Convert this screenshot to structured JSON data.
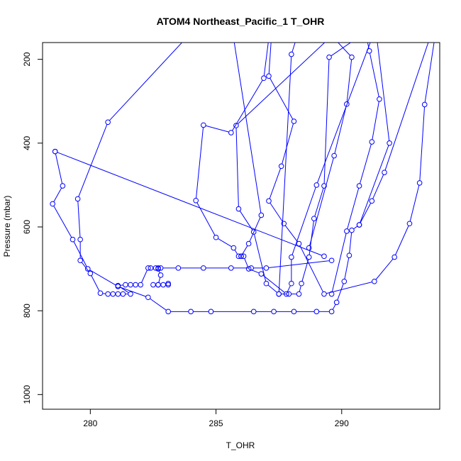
{
  "chart_data": {
    "type": "line",
    "title": "ATOM4 Northeast_Pacific_1 T_OHR",
    "xlabel": "T_OHR",
    "ylabel": "Pressure (mbar)",
    "xlim": [
      278.1,
      293.9
    ],
    "ylim": [
      1035,
      160
    ],
    "y_reversed": true,
    "xticks": [
      280,
      285,
      290
    ],
    "yticks": [
      200,
      400,
      600,
      800,
      1000
    ],
    "grid": false,
    "color": "#0000ff",
    "series": [
      {
        "points": [
          [
            283.8,
            150
          ],
          [
            280.7,
            350
          ],
          [
            279.5,
            533
          ],
          [
            279.6,
            630
          ],
          [
            279.6,
            680
          ],
          [
            280.0,
            711
          ],
          [
            280.4,
            758
          ],
          [
            280.7,
            760
          ],
          [
            280.9,
            760
          ],
          [
            281.1,
            760
          ],
          [
            281.3,
            760
          ],
          [
            281.6,
            760
          ],
          [
            281.1,
            740
          ],
          [
            281.4,
            738
          ],
          [
            281.6,
            738
          ],
          [
            281.8,
            738
          ],
          [
            282.0,
            738
          ],
          [
            282.3,
            698
          ],
          [
            282.4,
            698
          ],
          [
            282.6,
            698
          ],
          [
            282.7,
            698
          ],
          [
            282.8,
            698
          ],
          [
            283.5,
            698
          ],
          [
            284.5,
            698
          ],
          [
            285.6,
            698
          ],
          [
            286.4,
            698
          ],
          [
            287.0,
            698
          ],
          [
            289.6,
            680
          ]
        ]
      },
      {
        "points": [
          [
            278.6,
            420
          ],
          [
            278.9,
            502
          ],
          [
            278.5,
            545
          ],
          [
            279.3,
            630
          ],
          [
            279.9,
            700
          ],
          [
            281.1,
            742
          ],
          [
            282.3,
            768
          ],
          [
            283.1,
            802
          ],
          [
            284.0,
            802
          ],
          [
            284.8,
            802
          ],
          [
            286.5,
            802
          ],
          [
            287.3,
            802
          ],
          [
            288.1,
            802
          ],
          [
            289.0,
            802
          ],
          [
            289.6,
            802
          ],
          [
            289.8,
            780
          ],
          [
            290.1,
            730
          ],
          [
            290.3,
            668
          ],
          [
            290.4,
            608
          ],
          [
            290.7,
            595
          ],
          [
            291.2,
            538
          ],
          [
            291.7,
            470
          ],
          [
            293.5,
            150
          ]
        ]
      },
      {
        "points": [
          [
            278.6,
            420
          ],
          [
            289.3,
            670
          ]
        ]
      },
      {
        "points": [
          [
            290.6,
            150
          ],
          [
            289.5,
            195
          ],
          [
            289.3,
            502
          ],
          [
            288.9,
            580
          ],
          [
            288.7,
            672
          ],
          [
            288.4,
            735
          ],
          [
            288.3,
            760
          ],
          [
            287.9,
            760
          ],
          [
            287.5,
            760
          ],
          [
            287.0,
            735
          ],
          [
            286.5,
            612
          ],
          [
            285.9,
            557
          ],
          [
            285.8,
            358
          ],
          [
            289.5,
            150
          ]
        ]
      },
      {
        "points": [
          [
            287.1,
            150
          ],
          [
            286.9,
            245
          ],
          [
            285.6,
            375
          ],
          [
            284.5,
            357
          ],
          [
            284.2,
            537
          ],
          [
            285.0,
            625
          ],
          [
            285.7,
            650
          ],
          [
            285.9,
            670
          ],
          [
            286.0,
            670
          ],
          [
            286.1,
            670
          ],
          [
            286.3,
            700
          ],
          [
            286.8,
            712
          ],
          [
            287.8,
            760
          ],
          [
            288.0,
            735
          ],
          [
            288.0,
            672
          ],
          [
            289.0,
            500
          ],
          [
            291.2,
            150
          ]
        ]
      },
      {
        "points": [
          [
            287.2,
            150
          ],
          [
            287.1,
            240
          ],
          [
            288.1,
            348
          ],
          [
            287.6,
            455
          ],
          [
            287.1,
            538
          ],
          [
            287.7,
            592
          ],
          [
            288.3,
            640
          ],
          [
            289.3,
            760
          ],
          [
            291.3,
            730
          ],
          [
            292.1,
            672
          ],
          [
            292.7,
            592
          ],
          [
            293.1,
            495
          ],
          [
            293.3,
            308
          ],
          [
            293.7,
            150
          ]
        ]
      },
      {
        "points": [
          [
            289.7,
            150
          ],
          [
            290.4,
            195
          ],
          [
            290.2,
            307
          ],
          [
            289.7,
            430
          ],
          [
            288.7,
            650
          ]
        ]
      },
      {
        "points": [
          [
            291.0,
            150
          ],
          [
            291.1,
            180
          ],
          [
            291.5,
            295
          ],
          [
            291.2,
            397
          ],
          [
            290.7,
            502
          ],
          [
            290.2,
            610
          ],
          [
            289.6,
            760
          ]
        ]
      },
      {
        "points": [
          [
            285.7,
            150
          ],
          [
            286.8,
            572
          ],
          [
            286.3,
            640
          ],
          [
            286.0,
            670
          ]
        ]
      },
      {
        "points": [
          [
            288.2,
            150
          ],
          [
            288.0,
            188
          ],
          [
            287.5,
            760
          ]
        ]
      },
      {
        "points": [
          [
            291.4,
            150
          ],
          [
            291.9,
            400
          ],
          [
            290.7,
            595
          ]
        ]
      },
      {
        "points": [
          [
            282.7,
            700
          ],
          [
            282.8,
            715
          ],
          [
            282.7,
            738
          ],
          [
            282.9,
            738
          ],
          [
            283.1,
            735
          ],
          [
            283.1,
            738
          ]
        ]
      },
      {
        "points": [
          [
            282.5,
            738
          ],
          [
            282.7,
            738
          ]
        ]
      }
    ]
  }
}
